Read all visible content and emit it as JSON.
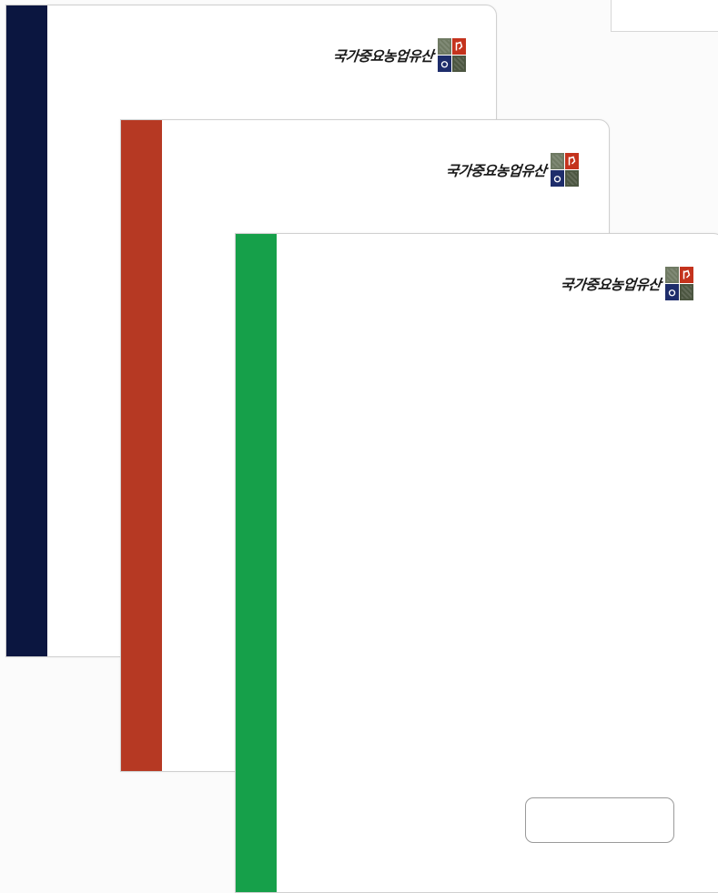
{
  "brand": {
    "text": "국가중요농업유산",
    "logo_icon": "heritage-mosaic-icon",
    "logo_colors": [
      "#6f7a63",
      "#c4331d",
      "#1e2d6b",
      "#4c5641"
    ]
  },
  "covers": [
    {
      "color_name": "navy",
      "spine_color": "#0b1640"
    },
    {
      "color_name": "red",
      "spine_color": "#b63923"
    },
    {
      "color_name": "green",
      "spine_color": "#16a04a"
    }
  ]
}
